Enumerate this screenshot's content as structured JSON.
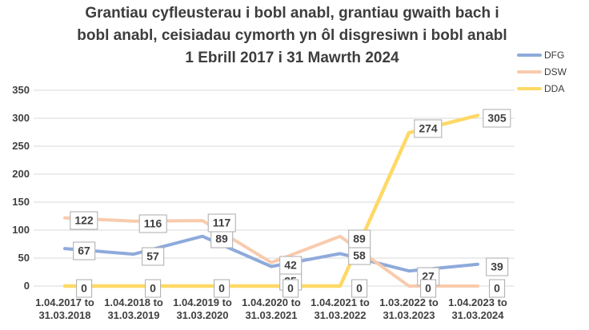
{
  "chart_data": {
    "type": "line",
    "title": "Grantiau cyfleusterau i bobl anabl, grantiau gwaith bach i bobl anabl, ceisiadau cymorth yn ôl disgresiwn i bobl anabl 1 Ebrill 2017 i 31 Mawrth 2024",
    "title_lines": [
      "Grantiau cyfleusterau i bobl anabl, grantiau gwaith bach i",
      "bobl anabl, ceisiadau cymorth yn ôl disgresiwn i bobl anabl",
      "1 Ebrill 2017 i 31 Mawrth 2024"
    ],
    "categories": [
      [
        "1.04.2017 to",
        "31.03.2018"
      ],
      [
        "1.04.2018 to",
        "31.03.2019"
      ],
      [
        "1.04.2019 to",
        "31.03.2020"
      ],
      [
        "1.04.2020 to",
        "31.03.2021"
      ],
      [
        "1.04.2021 to",
        "31.03.2022"
      ],
      [
        "1.03.2022 to",
        "31.03.2023"
      ],
      [
        "1.04.2023 to",
        "31.03.2024"
      ]
    ],
    "series": [
      {
        "name": "DFG",
        "color": "#8eaadb",
        "width": 4,
        "values": [
          67,
          57,
          89,
          35,
          58,
          27,
          39
        ]
      },
      {
        "name": "DSW",
        "color": "#f8cbad",
        "width": 4,
        "values": [
          122,
          116,
          117,
          42,
          89,
          0,
          0
        ]
      },
      {
        "name": "DDA",
        "color": "#ffd965",
        "width": 4.5,
        "values": [
          0,
          0,
          0,
          0,
          0,
          274,
          305
        ]
      }
    ],
    "yticks": [
      0,
      50,
      100,
      150,
      200,
      250,
      300,
      350
    ],
    "ylim": [
      0,
      350
    ],
    "grid": true,
    "data_labels": true,
    "legend_position": "right",
    "label_nudges": [
      {
        "series": "DFG",
        "index": 3,
        "dy": 18,
        "note": "label mostly hidden behind the DDA zero label; only digit tops visible"
      },
      {
        "series": "DFG",
        "index": 5,
        "dy": 7
      },
      {
        "series": "DDA",
        "index": 5,
        "dy": -5
      }
    ],
    "colors": {
      "gridline": "#d9d9d9",
      "axis_text": "#404040",
      "title_text": "#3d3d3d",
      "label_border": "#ababab",
      "label_background": "#ffffff"
    }
  }
}
